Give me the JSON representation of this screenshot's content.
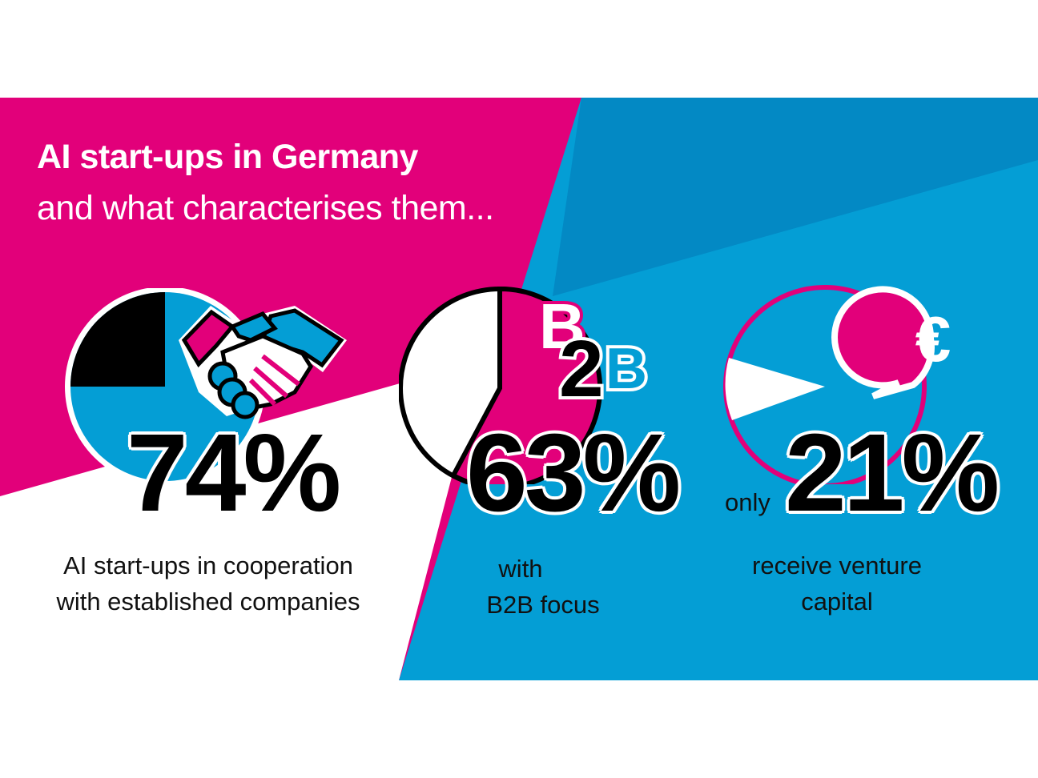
{
  "header": {
    "title": "AI start-ups in Germany",
    "subtitle": "and what characterises them..."
  },
  "colors": {
    "magenta": "#e2007a",
    "blue": "#049ed5",
    "blue_dark": "#0389c4",
    "black": "#000000",
    "white": "#ffffff"
  },
  "stats": [
    {
      "value": "74%",
      "share": 0.74,
      "description_line1": "AI start-ups in cooperation",
      "description_line2": "with established companies",
      "icon": "handshake-icon"
    },
    {
      "value": "63%",
      "share": 0.63,
      "description_line1": "with",
      "description_line2": "B2B focus",
      "icon": "b2b-icon",
      "icon_text": [
        "B",
        "2",
        "B"
      ]
    },
    {
      "value": "21%",
      "prefix": "only",
      "share": 0.21,
      "description_line1": "receive venture",
      "description_line2": "capital",
      "icon": "euro-speech-bubble-icon",
      "icon_text": "€"
    }
  ]
}
